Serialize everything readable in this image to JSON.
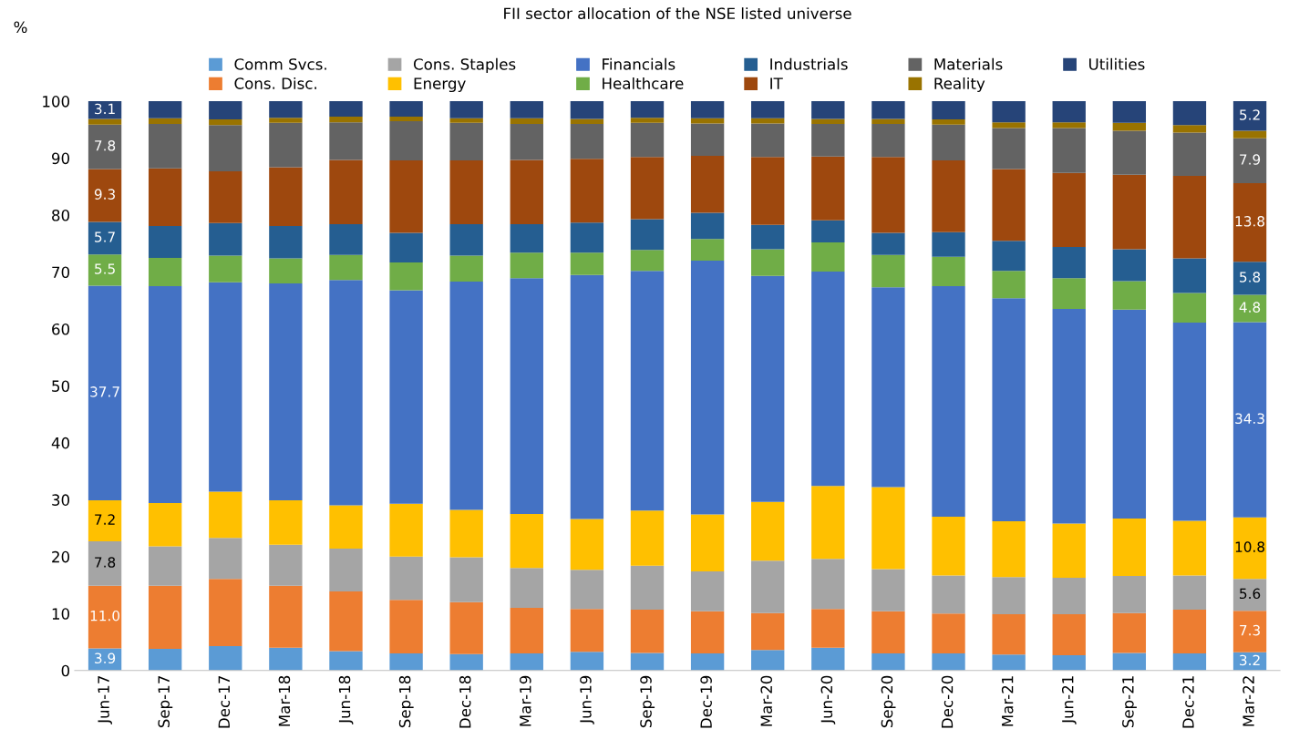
{
  "chart_data": {
    "type": "bar",
    "stacked": true,
    "title": "FII sector allocation of the NSE listed universe",
    "ylabel": "%",
    "categories": [
      "Jun-17",
      "Sep-17",
      "Dec-17",
      "Mar-18",
      "Jun-18",
      "Sep-18",
      "Dec-18",
      "Mar-19",
      "Jun-19",
      "Sep-19",
      "Dec-19",
      "Mar-20",
      "Jun-20",
      "Sep-20",
      "Dec-20",
      "Mar-21",
      "Jun-21",
      "Sep-21",
      "Dec-21",
      "Mar-22"
    ],
    "ylim": [
      0,
      100
    ],
    "yticks": [
      0,
      10,
      20,
      30,
      40,
      50,
      60,
      70,
      80,
      90,
      100
    ],
    "grid": false,
    "legend": "top",
    "series": [
      {
        "name": "Comm Svcs.",
        "color": "#5b9bd5",
        "values": [
          3.9,
          3.8,
          4.3,
          4.0,
          3.4,
          3.0,
          2.9,
          3.0,
          3.3,
          3.1,
          3.0,
          3.6,
          4.0,
          3.0,
          3.0,
          2.8,
          2.7,
          3.1,
          3.0,
          3.2
        ],
        "value_labels": [
          "3.9",
          null,
          null,
          null,
          null,
          null,
          null,
          null,
          null,
          null,
          null,
          null,
          null,
          null,
          null,
          null,
          null,
          null,
          null,
          "3.2"
        ]
      },
      {
        "name": "Cons. Disc.",
        "color": "#ed7d31",
        "values": [
          11.0,
          11.1,
          11.8,
          10.9,
          10.5,
          9.4,
          9.1,
          8.0,
          7.5,
          7.6,
          7.4,
          6.5,
          6.8,
          7.4,
          7.0,
          7.1,
          7.2,
          7.0,
          7.7,
          7.3
        ],
        "value_labels": [
          "11.0",
          null,
          null,
          null,
          null,
          null,
          null,
          null,
          null,
          null,
          null,
          null,
          null,
          null,
          null,
          null,
          null,
          null,
          null,
          "7.3"
        ]
      },
      {
        "name": "Cons. Staples",
        "color": "#a5a5a5",
        "values": [
          7.8,
          6.9,
          7.2,
          7.2,
          7.5,
          7.6,
          7.9,
          7.0,
          6.9,
          7.7,
          7.0,
          9.2,
          8.8,
          7.4,
          6.7,
          6.5,
          6.4,
          6.5,
          6.0,
          5.6
        ],
        "value_labels": [
          "7.8",
          null,
          null,
          null,
          null,
          null,
          null,
          null,
          null,
          null,
          null,
          null,
          null,
          null,
          null,
          null,
          null,
          null,
          null,
          "5.6"
        ]
      },
      {
        "name": "Energy",
        "color": "#ffc000",
        "values": [
          7.2,
          7.6,
          8.1,
          7.8,
          7.6,
          9.3,
          8.3,
          9.5,
          8.9,
          9.7,
          10.0,
          10.3,
          12.8,
          14.4,
          10.3,
          9.8,
          9.5,
          10.1,
          9.6,
          10.8
        ],
        "value_labels": [
          "7.2",
          null,
          null,
          null,
          null,
          null,
          null,
          null,
          null,
          null,
          null,
          null,
          null,
          null,
          null,
          null,
          null,
          null,
          null,
          "10.8"
        ]
      },
      {
        "name": "Financials",
        "color": "#4472c4",
        "values": [
          37.7,
          38.1,
          36.8,
          38.1,
          39.6,
          37.5,
          40.1,
          41.4,
          42.9,
          42.1,
          44.6,
          39.7,
          37.7,
          35.1,
          40.5,
          39.2,
          37.7,
          36.7,
          34.8,
          34.3
        ],
        "value_labels": [
          "37.7",
          null,
          null,
          null,
          null,
          null,
          null,
          null,
          null,
          null,
          null,
          null,
          null,
          null,
          null,
          null,
          null,
          null,
          null,
          "34.3"
        ]
      },
      {
        "name": "Healthcare",
        "color": "#70ad47",
        "values": [
          5.5,
          5.0,
          4.7,
          4.4,
          4.4,
          4.9,
          4.6,
          4.5,
          3.9,
          3.7,
          3.8,
          4.7,
          5.1,
          5.7,
          5.2,
          4.8,
          5.4,
          5.0,
          5.2,
          4.8
        ],
        "value_labels": [
          "5.5",
          null,
          null,
          null,
          null,
          null,
          null,
          null,
          null,
          null,
          null,
          null,
          null,
          null,
          null,
          null,
          null,
          null,
          null,
          "4.8"
        ]
      },
      {
        "name": "Industrials",
        "color": "#255e91",
        "values": [
          5.7,
          5.6,
          5.7,
          5.7,
          5.4,
          5.2,
          5.5,
          5.0,
          5.3,
          5.4,
          4.6,
          4.3,
          3.9,
          3.9,
          4.3,
          5.3,
          5.5,
          5.6,
          6.1,
          5.8
        ],
        "value_labels": [
          "5.7",
          null,
          null,
          null,
          null,
          null,
          null,
          null,
          null,
          null,
          null,
          null,
          null,
          null,
          null,
          null,
          null,
          null,
          null,
          "5.8"
        ]
      },
      {
        "name": "IT",
        "color": "#9e480e",
        "values": [
          9.3,
          10.1,
          9.1,
          10.3,
          11.3,
          12.7,
          11.2,
          11.3,
          11.2,
          10.9,
          10.0,
          11.9,
          11.2,
          13.3,
          12.6,
          12.6,
          13.0,
          13.1,
          14.5,
          13.8
        ],
        "value_labels": [
          "9.3",
          null,
          null,
          null,
          null,
          null,
          null,
          null,
          null,
          null,
          null,
          null,
          null,
          null,
          null,
          null,
          null,
          null,
          null,
          "13.8"
        ]
      },
      {
        "name": "Materials",
        "color": "#636363",
        "values": [
          7.8,
          7.8,
          8.1,
          7.8,
          6.6,
          6.9,
          6.6,
          6.3,
          6.1,
          6.0,
          5.7,
          5.9,
          5.7,
          5.8,
          6.3,
          7.2,
          7.9,
          7.7,
          7.6,
          7.9
        ],
        "value_labels": [
          "7.8",
          null,
          null,
          null,
          null,
          null,
          null,
          null,
          null,
          null,
          null,
          null,
          null,
          null,
          null,
          null,
          null,
          null,
          null,
          "7.9"
        ]
      },
      {
        "name": "Reality",
        "color": "#997300",
        "values": [
          1.0,
          1.0,
          1.0,
          0.9,
          1.0,
          0.8,
          0.8,
          1.0,
          0.9,
          0.9,
          0.9,
          0.9,
          0.9,
          0.9,
          0.9,
          1.0,
          1.0,
          1.4,
          1.3,
          1.3
        ]
      },
      {
        "name": "Utilities",
        "color": "#264478",
        "values": [
          3.1,
          3.0,
          3.2,
          2.9,
          2.7,
          2.7,
          3.0,
          3.0,
          3.1,
          2.9,
          3.0,
          3.0,
          3.1,
          3.1,
          3.2,
          3.7,
          3.7,
          3.8,
          4.2,
          5.2
        ],
        "value_labels": [
          "3.1",
          null,
          null,
          null,
          null,
          null,
          null,
          null,
          null,
          null,
          null,
          null,
          null,
          null,
          null,
          null,
          null,
          null,
          null,
          "5.2"
        ]
      }
    ]
  }
}
